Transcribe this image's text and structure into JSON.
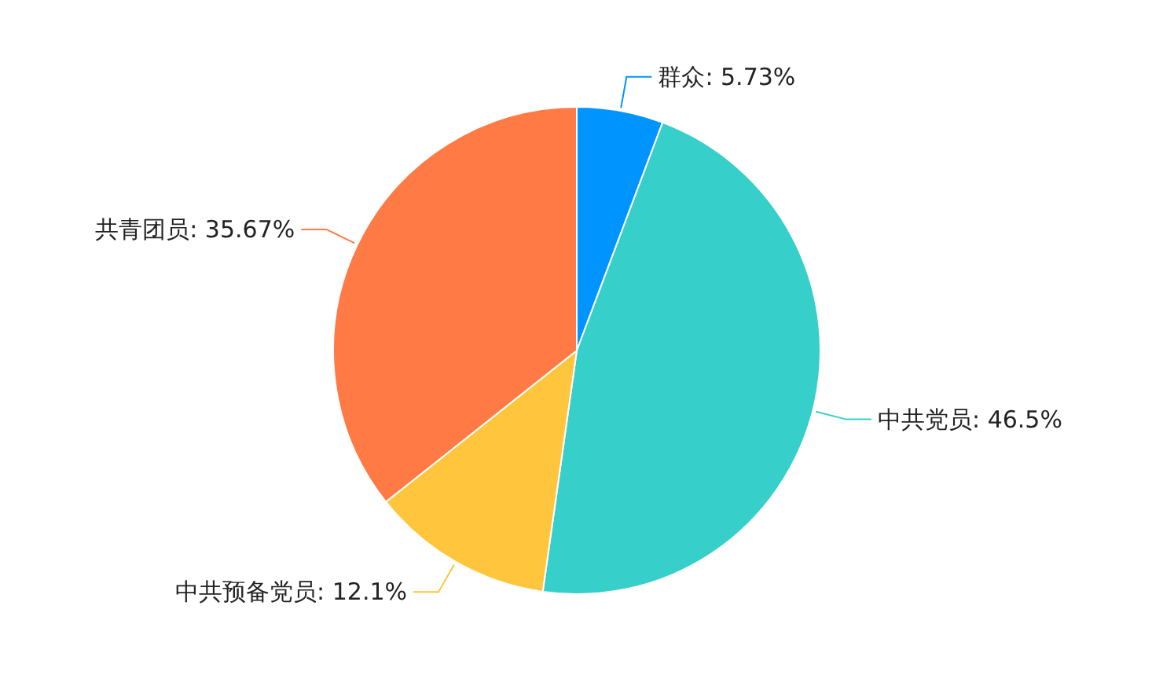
{
  "chart_data": {
    "type": "pie",
    "categories": [
      "群众",
      "中共党员",
      "中共预备党员",
      "共青团员"
    ],
    "values": [
      5.73,
      46.5,
      12.1,
      35.67
    ],
    "value_labels": [
      "5.73%",
      "46.5%",
      "12.1%",
      "35.67%"
    ],
    "colors": [
      "#0094ff",
      "#36cfca",
      "#ffc53d",
      "#ff7a45"
    ]
  }
}
